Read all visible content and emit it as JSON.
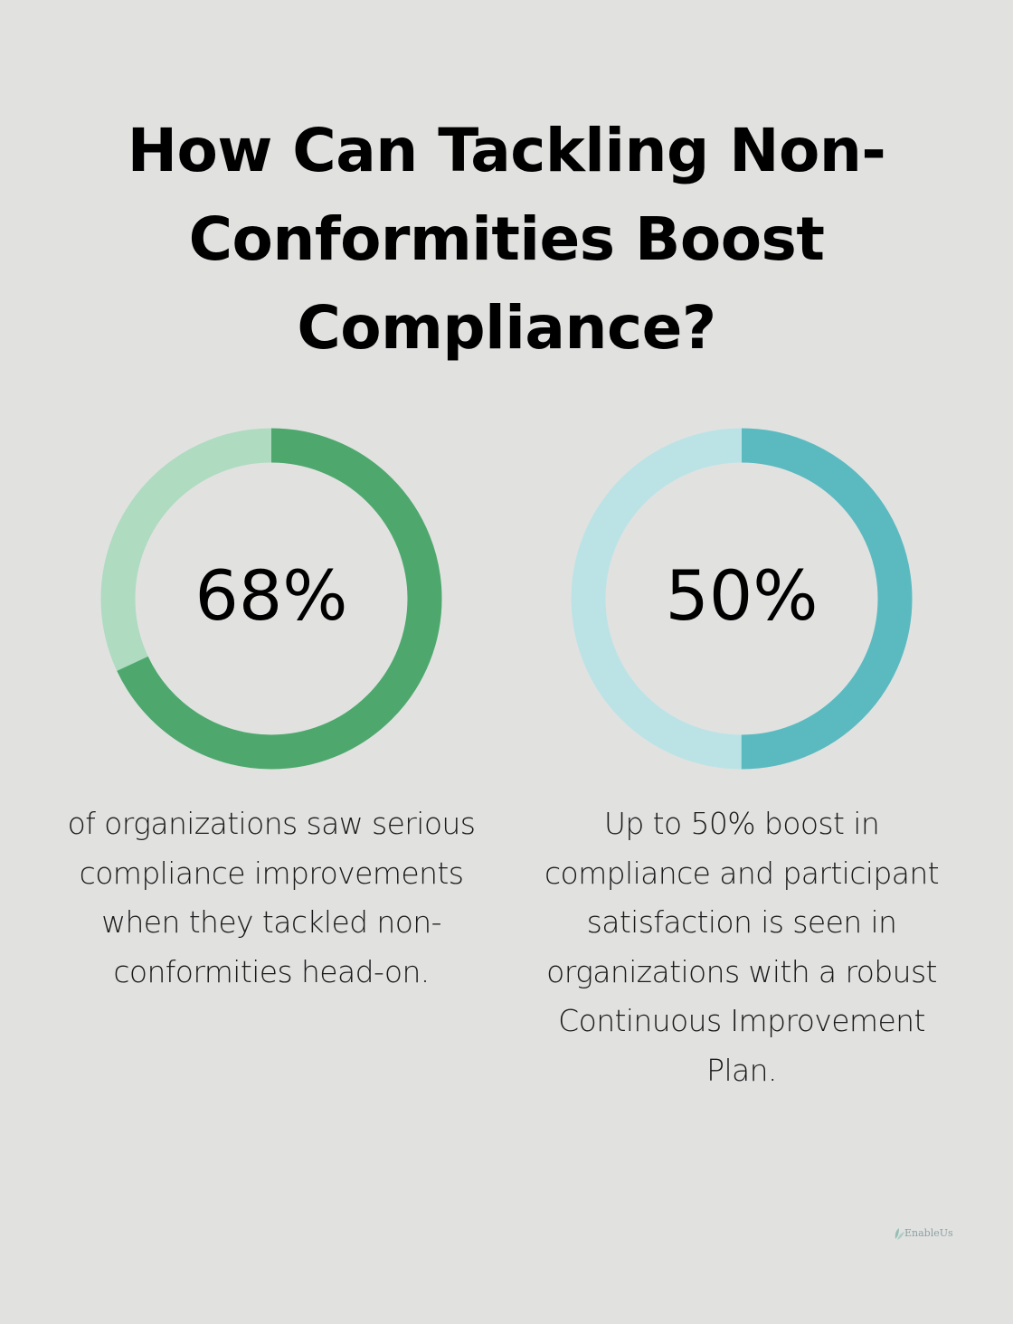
{
  "title": "How Can Tackling Non-Conformities Boost Compliance?",
  "chart_data": [
    {
      "type": "pie",
      "value": 68,
      "label": "68%",
      "description": "of organizations saw serious compliance improvements when they tackled non-conformities head-on.",
      "colors": {
        "fill": "#4ea86d",
        "track": "#afdbc0"
      }
    },
    {
      "type": "pie",
      "value": 50,
      "label": "50%",
      "description": "Up to 50% boost in compliance and participant satisfaction is seen in organizations with a robust Continuous Improvement Plan.",
      "colors": {
        "fill": "#5bbac0",
        "track": "#bbe3e5"
      }
    }
  ],
  "logo": {
    "text": "EnableUs",
    "icon": "leaf-icon"
  },
  "colors": {
    "background": "#e1e2e0",
    "text": "#000000"
  }
}
